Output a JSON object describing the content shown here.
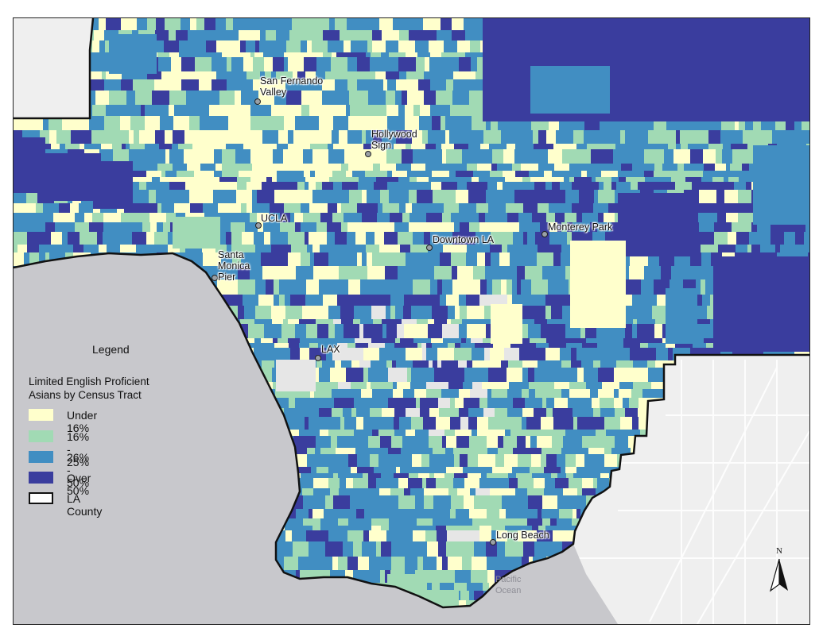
{
  "legend": {
    "title": "Legend",
    "subtitle_line1": "Limited English Proficient",
    "subtitle_line2": "Asians by Census Tract",
    "items": [
      {
        "label": "Under 16%",
        "color": "#ffffcc"
      },
      {
        "label": "16% - 25%",
        "color": "#a1dab4"
      },
      {
        "label": "26% - 50%",
        "color": "#418ec2"
      },
      {
        "label": "Over 50%",
        "color": "#3a3d9e"
      },
      {
        "label": "LA County",
        "color": "#ffffff"
      }
    ]
  },
  "places": [
    {
      "name": "San Fernando\nValley"
    },
    {
      "name": "Hollywood\nSign"
    },
    {
      "name": "UCLA"
    },
    {
      "name": "Downtown LA"
    },
    {
      "name": "Monterey Park"
    },
    {
      "name": "Santa\nMonica\nPier"
    },
    {
      "name": "LAX"
    },
    {
      "name": "Long Beach"
    }
  ],
  "ocean_label": "Pacific\nOcean",
  "north_label": "N",
  "colors": {
    "ocean": "#c8c8cc",
    "land_outside": "#efefef",
    "county_outline": "#111111"
  }
}
